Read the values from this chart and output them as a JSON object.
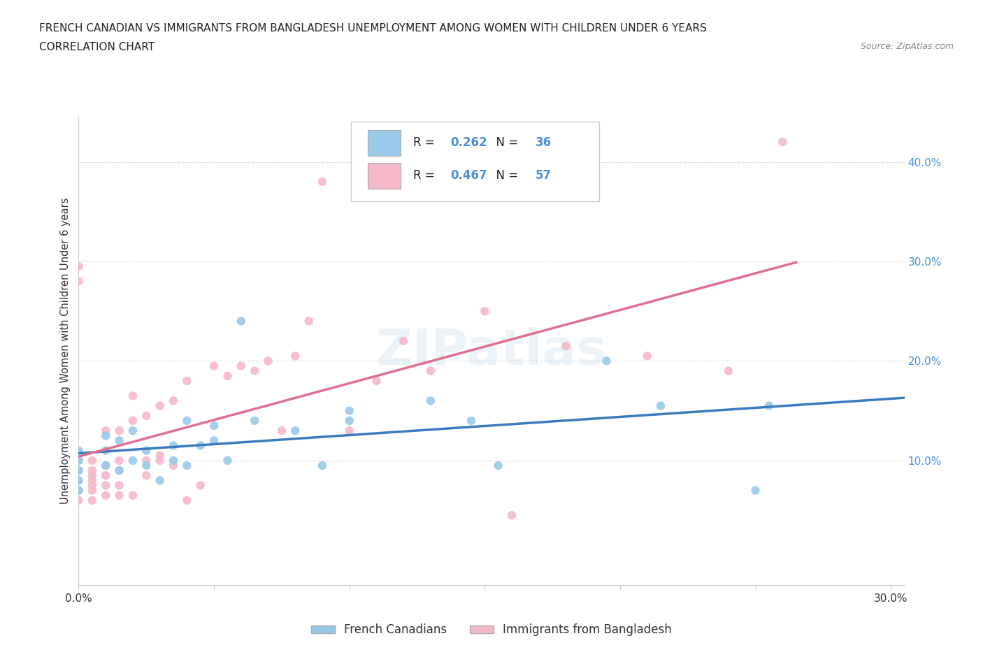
{
  "title_line1": "FRENCH CANADIAN VS IMMIGRANTS FROM BANGLADESH UNEMPLOYMENT AMONG WOMEN WITH CHILDREN UNDER 6 YEARS",
  "title_line2": "CORRELATION CHART",
  "source": "Source: ZipAtlas.com",
  "ylabel": "Unemployment Among Women with Children Under 6 years",
  "xlim": [
    0.0,
    0.305
  ],
  "ylim": [
    -0.025,
    0.445
  ],
  "x_ticks": [
    0.0,
    0.05,
    0.1,
    0.15,
    0.2,
    0.25,
    0.3
  ],
  "y_ticks_right": [
    0.1,
    0.2,
    0.3,
    0.4
  ],
  "y_tick_labels_right": [
    "10.0%",
    "20.0%",
    "30.0%",
    "40.0%"
  ],
  "R_blue": 0.262,
  "N_blue": 36,
  "R_pink": 0.467,
  "N_pink": 57,
  "blue_color": "#99c9e8",
  "pink_color": "#f4b8c8",
  "blue_line_color": "#3a7bbf",
  "pink_line_color": "#e07090",
  "watermark": "ZIPatlas",
  "blue_scatter_x": [
    0.0,
    0.0,
    0.0,
    0.0,
    0.0,
    0.01,
    0.01,
    0.01,
    0.015,
    0.015,
    0.02,
    0.02,
    0.025,
    0.025,
    0.03,
    0.035,
    0.035,
    0.04,
    0.04,
    0.045,
    0.05,
    0.05,
    0.055,
    0.06,
    0.065,
    0.08,
    0.09,
    0.1,
    0.1,
    0.13,
    0.145,
    0.155,
    0.195,
    0.215,
    0.25,
    0.255
  ],
  "blue_scatter_y": [
    0.07,
    0.08,
    0.09,
    0.1,
    0.11,
    0.095,
    0.11,
    0.125,
    0.09,
    0.12,
    0.1,
    0.13,
    0.095,
    0.11,
    0.08,
    0.1,
    0.115,
    0.095,
    0.14,
    0.115,
    0.12,
    0.135,
    0.1,
    0.24,
    0.14,
    0.13,
    0.095,
    0.14,
    0.15,
    0.16,
    0.14,
    0.095,
    0.2,
    0.155,
    0.07,
    0.155
  ],
  "pink_scatter_x": [
    0.0,
    0.0,
    0.0,
    0.0,
    0.0,
    0.0,
    0.0,
    0.005,
    0.005,
    0.005,
    0.005,
    0.005,
    0.005,
    0.005,
    0.01,
    0.01,
    0.01,
    0.01,
    0.01,
    0.015,
    0.015,
    0.015,
    0.015,
    0.015,
    0.02,
    0.02,
    0.02,
    0.025,
    0.025,
    0.025,
    0.03,
    0.03,
    0.03,
    0.035,
    0.035,
    0.04,
    0.04,
    0.045,
    0.05,
    0.055,
    0.06,
    0.065,
    0.07,
    0.075,
    0.08,
    0.085,
    0.09,
    0.1,
    0.11,
    0.12,
    0.13,
    0.15,
    0.16,
    0.18,
    0.21,
    0.24,
    0.26
  ],
  "pink_scatter_y": [
    0.06,
    0.07,
    0.08,
    0.09,
    0.1,
    0.28,
    0.295,
    0.06,
    0.07,
    0.075,
    0.08,
    0.085,
    0.09,
    0.1,
    0.065,
    0.075,
    0.085,
    0.095,
    0.13,
    0.065,
    0.075,
    0.09,
    0.1,
    0.13,
    0.065,
    0.14,
    0.165,
    0.085,
    0.1,
    0.145,
    0.1,
    0.105,
    0.155,
    0.095,
    0.16,
    0.06,
    0.18,
    0.075,
    0.195,
    0.185,
    0.195,
    0.19,
    0.2,
    0.13,
    0.205,
    0.24,
    0.38,
    0.13,
    0.18,
    0.22,
    0.19,
    0.25,
    0.045,
    0.215,
    0.205,
    0.19,
    0.42
  ]
}
